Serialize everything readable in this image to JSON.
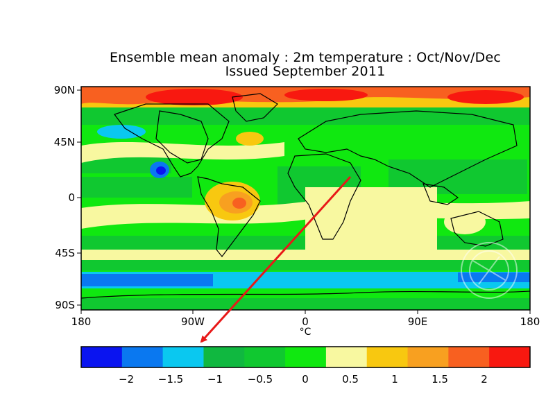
{
  "title": "Ensemble mean anomaly : 2m temperature : Oct/Nov/Dec",
  "subtitle": "Issued September 2011",
  "y_axis": {
    "ticks": [
      "90N",
      "45N",
      "0",
      "45S",
      "90S"
    ]
  },
  "x_axis": {
    "ticks": [
      "180",
      "90W",
      "0",
      "90E",
      "180"
    ],
    "unit": "°C"
  },
  "colorbar": {
    "tick_labels": [
      "−2",
      "−1.5",
      "−1",
      "−0.5",
      "0",
      "0.5",
      "1",
      "1.5",
      "2"
    ],
    "colors": [
      "#0a14f0",
      "#0a78f0",
      "#0ac8f0",
      "#10b840",
      "#10c830",
      "#10e810",
      "#f8f8a0",
      "#f8c810",
      "#f8a020",
      "#f86020",
      "#f81810"
    ]
  },
  "colors": {
    "annotation_arrow": "#e81818",
    "frame": "#000000",
    "ocean_base": "#10e810"
  }
}
